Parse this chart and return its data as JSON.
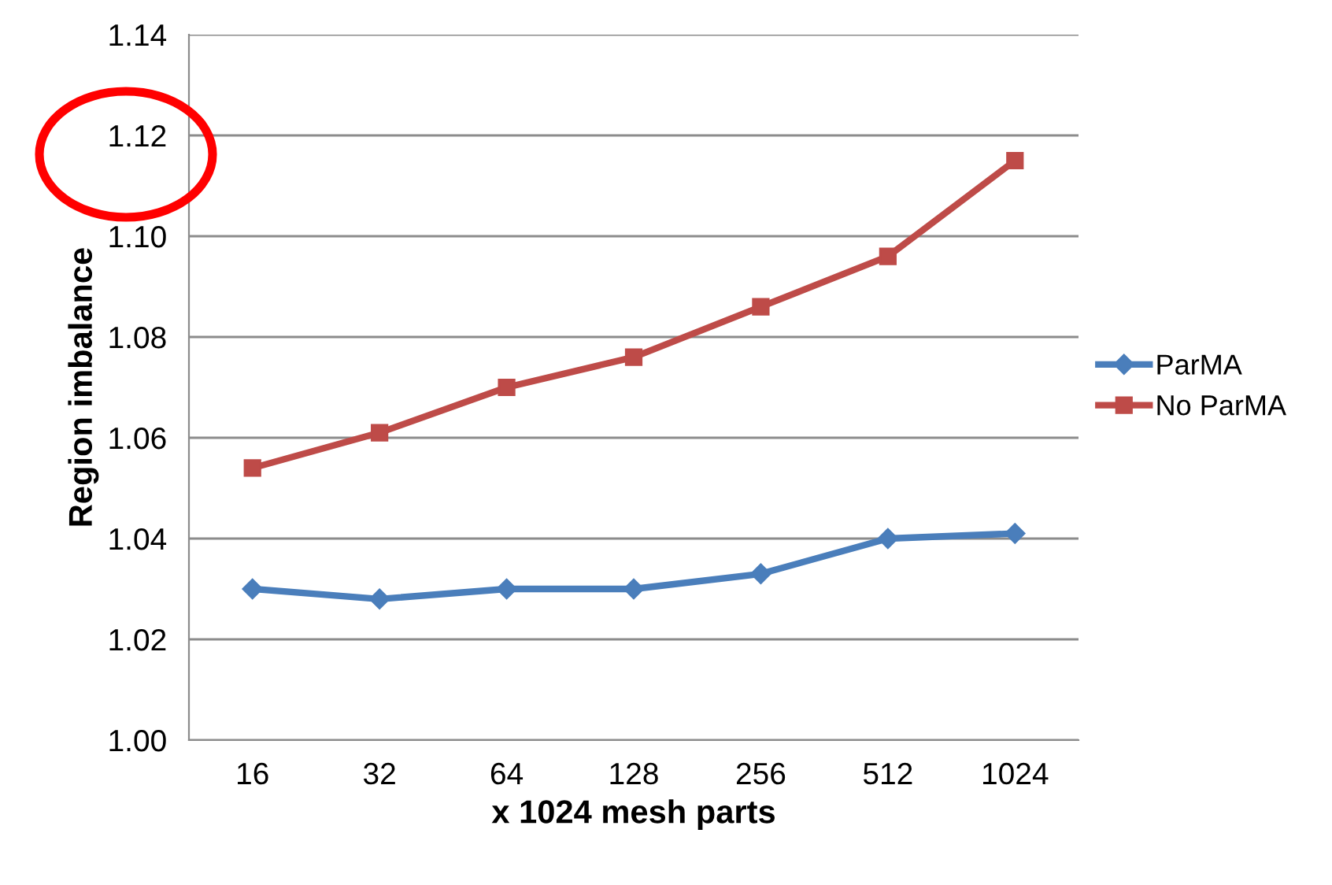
{
  "chart_data": {
    "type": "line",
    "xlabel": "x 1024 mesh parts",
    "ylabel": "Region imbalance",
    "categories": [
      "16",
      "32",
      "64",
      "128",
      "256",
      "512",
      "1024"
    ],
    "series": [
      {
        "name": "ParMA",
        "color": "#4a7ebb",
        "marker": "diamond",
        "values": [
          1.03,
          1.028,
          1.03,
          1.03,
          1.033,
          1.04,
          1.041
        ]
      },
      {
        "name": "No ParMA",
        "color": "#be4b48",
        "marker": "square",
        "values": [
          1.054,
          1.061,
          1.07,
          1.076,
          1.086,
          1.096,
          1.115
        ]
      }
    ],
    "ylim": [
      1.0,
      1.14
    ],
    "yticks": [
      {
        "value": 1.0,
        "label": "1.00"
      },
      {
        "value": 1.02,
        "label": "1.02"
      },
      {
        "value": 1.04,
        "label": "1.04"
      },
      {
        "value": 1.06,
        "label": "1.06"
      },
      {
        "value": 1.08,
        "label": "1.08"
      },
      {
        "value": 1.1,
        "label": "1.10"
      },
      {
        "value": 1.12,
        "label": "1.12"
      },
      {
        "value": 1.14,
        "label": "1.14"
      }
    ],
    "grid": "y",
    "legend": "right",
    "line_style": "solid"
  }
}
